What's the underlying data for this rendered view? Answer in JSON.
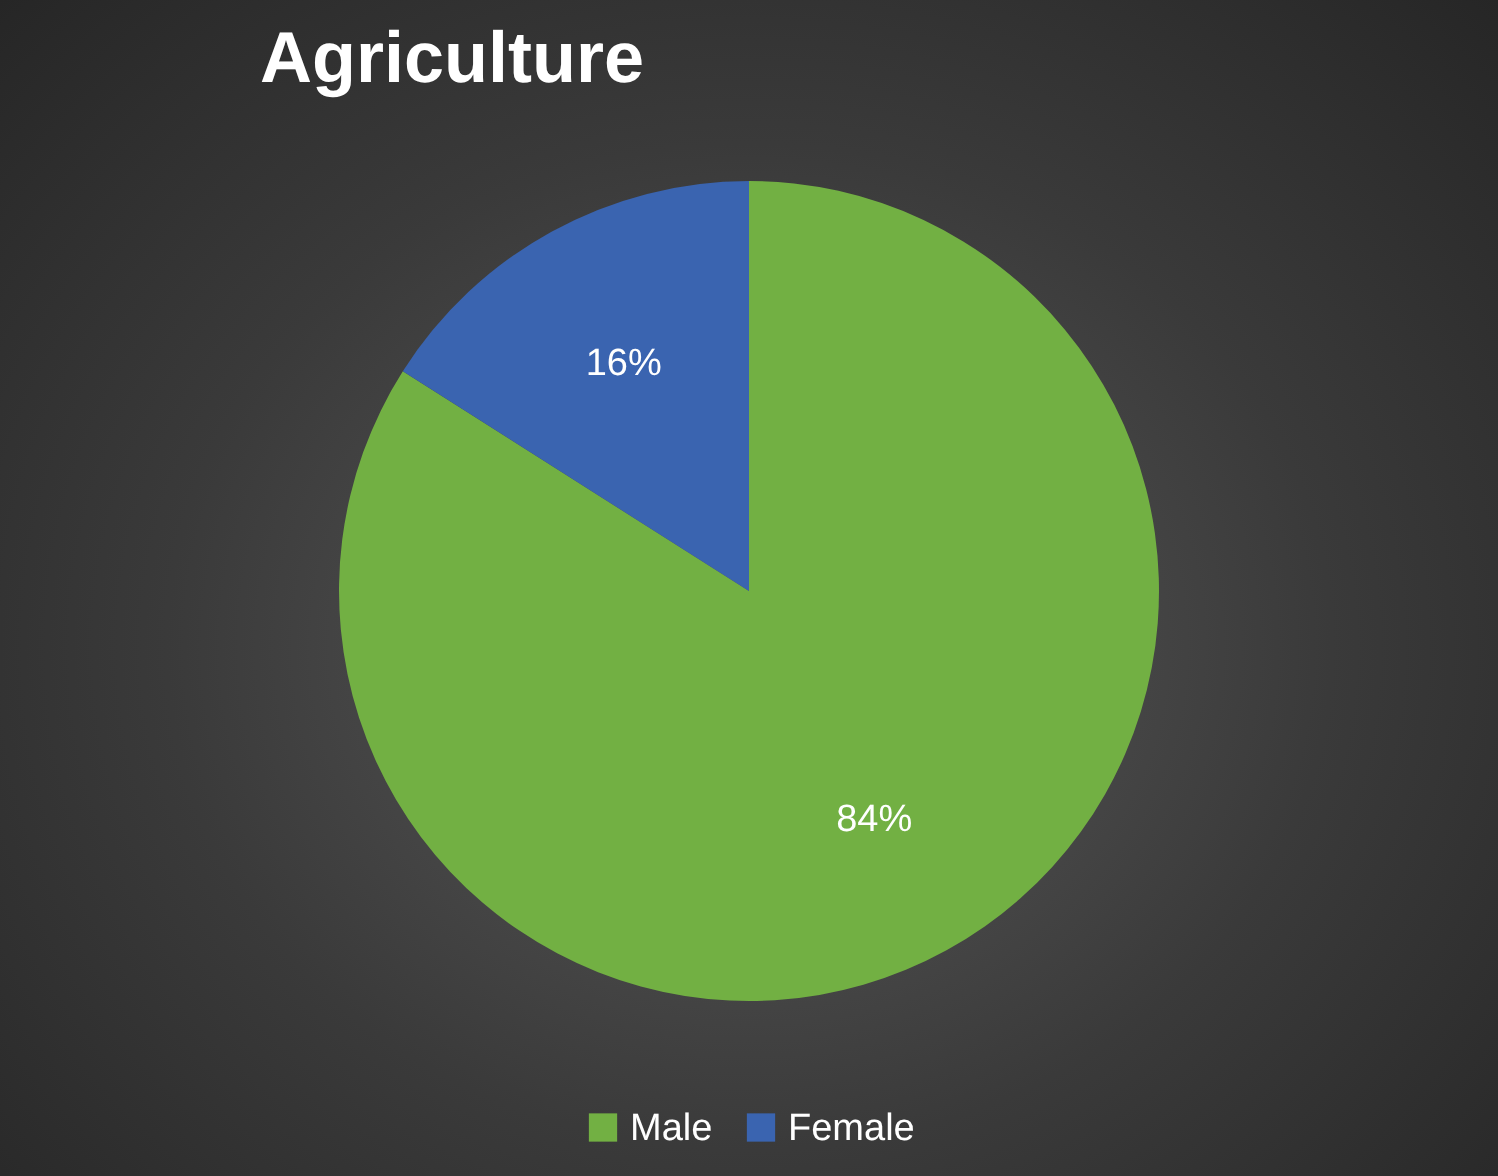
{
  "chart_data": {
    "type": "pie",
    "title": "Agriculture",
    "categories": [
      "Male",
      "Female"
    ],
    "values": [
      84,
      16
    ],
    "colors": [
      "#72b043",
      "#3a64b0"
    ],
    "value_labels": [
      "84%",
      "16%"
    ],
    "legend": "bottom"
  }
}
